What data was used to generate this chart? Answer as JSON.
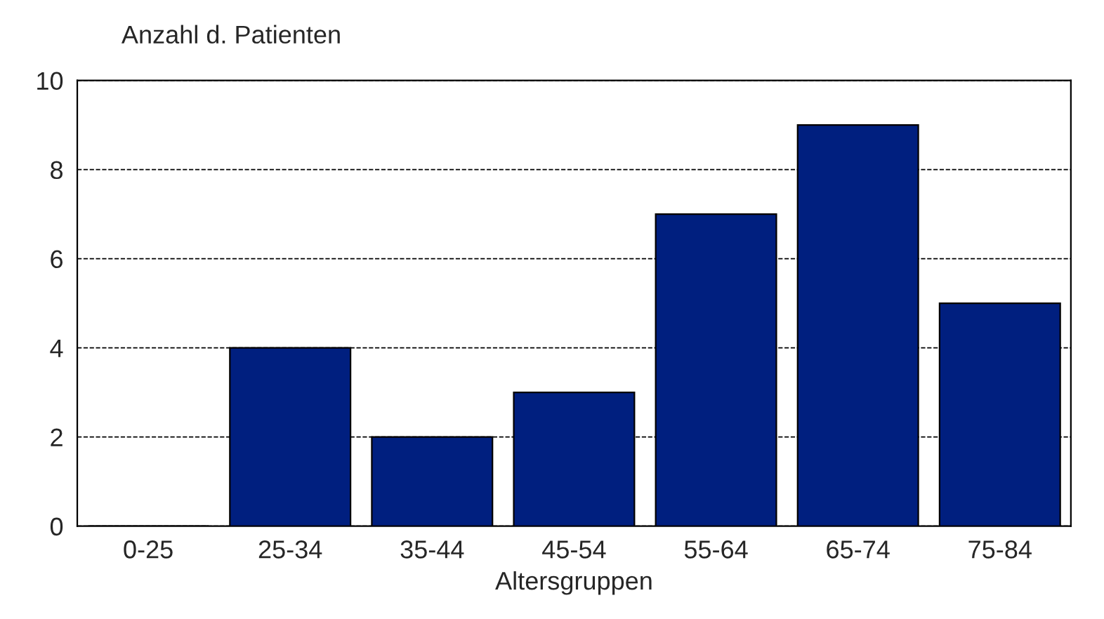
{
  "chart_data": {
    "type": "bar",
    "ylabel": "Anzahl d. Patienten",
    "xlabel": "Altersgruppen",
    "categories": [
      "0-25",
      "25-34",
      "35-44",
      "45-54",
      "55-64",
      "65-74",
      "75-84"
    ],
    "values": [
      0,
      4,
      2,
      3,
      7,
      9,
      5
    ],
    "color": "#001f7f",
    "ylim": [
      0,
      10
    ],
    "yticks": [
      0,
      2,
      4,
      6,
      8,
      10
    ],
    "grid": "y"
  }
}
